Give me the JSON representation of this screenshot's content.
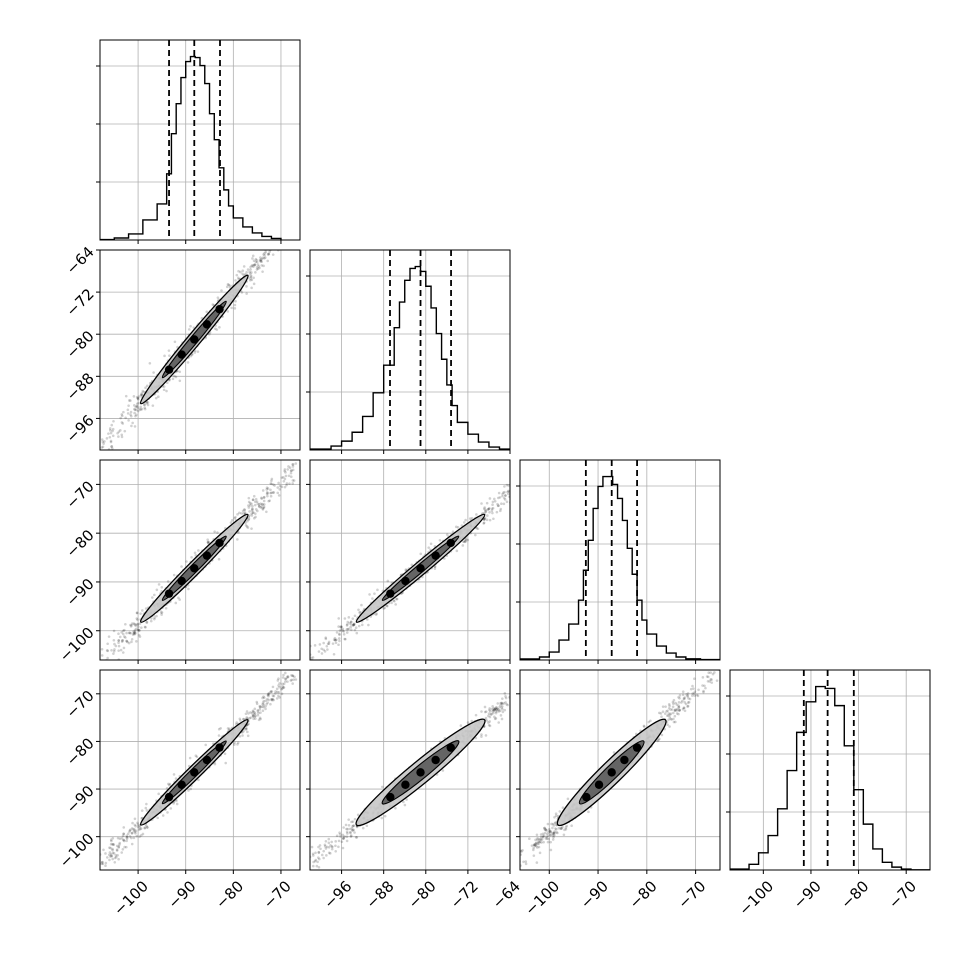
{
  "chart_data": {
    "type": "corner",
    "n_params": 4,
    "grid": true,
    "quantiles": [
      0.16,
      0.5,
      0.84
    ],
    "colors": {
      "hist": "#000000",
      "quantile": "#000000",
      "grid": "#b0b0b0",
      "axes": "#000000"
    },
    "ranges": [
      [
        -108,
        -66
      ],
      [
        -102,
        -64
      ],
      [
        -106,
        -65
      ],
      [
        -107,
        -65
      ]
    ],
    "ticks": [
      [
        -100,
        -90,
        -80,
        -70
      ],
      [
        -96,
        -88,
        -80,
        -72,
        -64
      ],
      [
        -100,
        -90,
        -80,
        -70
      ],
      [
        -100,
        -90,
        -80,
        -70
      ]
    ],
    "tick_labels": [
      [
        "−100",
        "−90",
        "−80",
        "−70"
      ],
      [
        "−96",
        "−88",
        "−80",
        "−72",
        "−64"
      ],
      [
        "−100",
        "−90",
        "−80",
        "−70"
      ],
      [
        "−100",
        "−90",
        "−80",
        "−70"
      ]
    ],
    "params": [
      {
        "quantile_values": [
          -93.5,
          -88.2,
          -82.8
        ],
        "histogram": {
          "bin_edges": [
            -108,
            -105,
            -102,
            -99,
            -96,
            -94,
            -93,
            -92,
            -91,
            -90,
            -89,
            -88,
            -87,
            -86,
            -85,
            -84,
            -83,
            -82,
            -81,
            -80,
            -78,
            -76,
            -74,
            -72,
            -70
          ],
          "counts": [
            2,
            10,
            30,
            100,
            180,
            330,
            530,
            680,
            810,
            890,
            915,
            910,
            870,
            780,
            630,
            500,
            360,
            250,
            170,
            110,
            65,
            35,
            18,
            8
          ]
        }
      },
      {
        "quantile_values": [
          -86.8,
          -81.0,
          -75.2
        ],
        "histogram": {
          "bin_edges": [
            -102,
            -98,
            -96,
            -94,
            -92,
            -90,
            -88,
            -86,
            -85,
            -84,
            -83,
            -82,
            -81,
            -80,
            -79,
            -78,
            -77,
            -76,
            -75,
            -74,
            -72,
            -70,
            -68,
            -66,
            -64
          ],
          "counts": [
            5,
            20,
            45,
            90,
            170,
            290,
            430,
            620,
            750,
            860,
            920,
            930,
            905,
            830,
            720,
            590,
            460,
            330,
            225,
            140,
            80,
            40,
            15,
            5
          ]
        }
      },
      {
        "quantile_values": [
          -92.5,
          -87.2,
          -82.0
        ],
        "histogram": {
          "bin_edges": [
            -106,
            -102,
            -100,
            -98,
            -96,
            -94,
            -93,
            -92,
            -91,
            -90,
            -89,
            -88,
            -87,
            -86,
            -85,
            -84,
            -83,
            -82,
            -81,
            -80,
            -78,
            -76,
            -74,
            -72,
            -69,
            -65
          ],
          "counts": [
            5,
            15,
            40,
            100,
            180,
            300,
            450,
            600,
            760,
            870,
            920,
            920,
            880,
            810,
            700,
            560,
            430,
            300,
            200,
            130,
            70,
            35,
            15,
            6,
            2
          ]
        }
      },
      {
        "quantile_values": [
          -91.5,
          -86.5,
          -81.0
        ],
        "histogram": {
          "bin_edges": [
            -107,
            -103,
            -101,
            -99,
            -97,
            -95,
            -93,
            -91,
            -89,
            -87,
            -85,
            -83,
            -81,
            -79,
            -77,
            -75,
            -73,
            -71,
            -69,
            -65
          ],
          "counts": [
            5,
            30,
            90,
            180,
            320,
            520,
            720,
            880,
            960,
            950,
            860,
            650,
            420,
            240,
            110,
            40,
            15,
            5,
            1
          ]
        }
      }
    ]
  }
}
